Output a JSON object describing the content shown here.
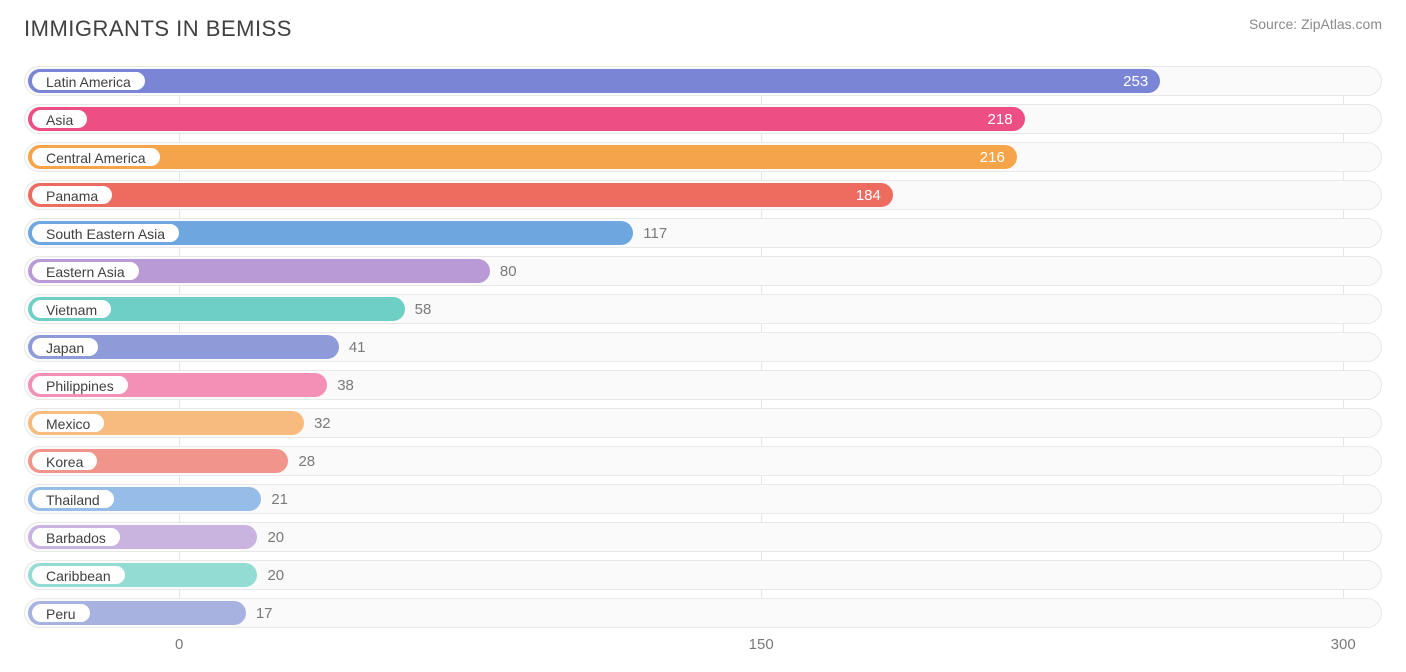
{
  "header": {
    "title": "IMMIGRANTS IN BEMISS",
    "source": "Source: ZipAtlas.com"
  },
  "chart": {
    "type": "bar-horizontal",
    "xmin": -40,
    "xmax": 310,
    "xticks": [
      0,
      150,
      300
    ],
    "track_bg": "#fafafa",
    "track_border": "#e8e8e8",
    "grid_color": "#e6e6e6",
    "label_font_size": 14,
    "value_font_size": 15,
    "bars": [
      {
        "label": "Latin America",
        "value": 253,
        "color": "#7a85d6",
        "value_color": "#ffffff",
        "value_inside": true
      },
      {
        "label": "Asia",
        "value": 218,
        "color": "#ed4f85",
        "value_color": "#ffffff",
        "value_inside": true
      },
      {
        "label": "Central America",
        "value": 216,
        "color": "#f6a44a",
        "value_color": "#ffffff",
        "value_inside": true
      },
      {
        "label": "Panama",
        "value": 184,
        "color": "#ed6b5f",
        "value_color": "#ffffff",
        "value_inside": true
      },
      {
        "label": "South Eastern Asia",
        "value": 117,
        "color": "#6ea7e0",
        "value_color": "#7a7a7a",
        "value_inside": false
      },
      {
        "label": "Eastern Asia",
        "value": 80,
        "color": "#b99ad6",
        "value_color": "#7a7a7a",
        "value_inside": false
      },
      {
        "label": "Vietnam",
        "value": 58,
        "color": "#6ecfc6",
        "value_color": "#7a7a7a",
        "value_inside": false
      },
      {
        "label": "Japan",
        "value": 41,
        "color": "#8f9bd9",
        "value_color": "#7a7a7a",
        "value_inside": false
      },
      {
        "label": "Philippines",
        "value": 38,
        "color": "#f490b6",
        "value_color": "#7a7a7a",
        "value_inside": false
      },
      {
        "label": "Mexico",
        "value": 32,
        "color": "#f7bb7e",
        "value_color": "#7a7a7a",
        "value_inside": false
      },
      {
        "label": "Korea",
        "value": 28,
        "color": "#f1958c",
        "value_color": "#7a7a7a",
        "value_inside": false
      },
      {
        "label": "Thailand",
        "value": 21,
        "color": "#95bde7",
        "value_color": "#7a7a7a",
        "value_inside": false
      },
      {
        "label": "Barbados",
        "value": 20,
        "color": "#c9b4e0",
        "value_color": "#7a7a7a",
        "value_inside": false
      },
      {
        "label": "Caribbean",
        "value": 20,
        "color": "#93dcd4",
        "value_color": "#7a7a7a",
        "value_inside": false
      },
      {
        "label": "Peru",
        "value": 17,
        "color": "#a8b2e1",
        "value_color": "#7a7a7a",
        "value_inside": false
      }
    ]
  }
}
